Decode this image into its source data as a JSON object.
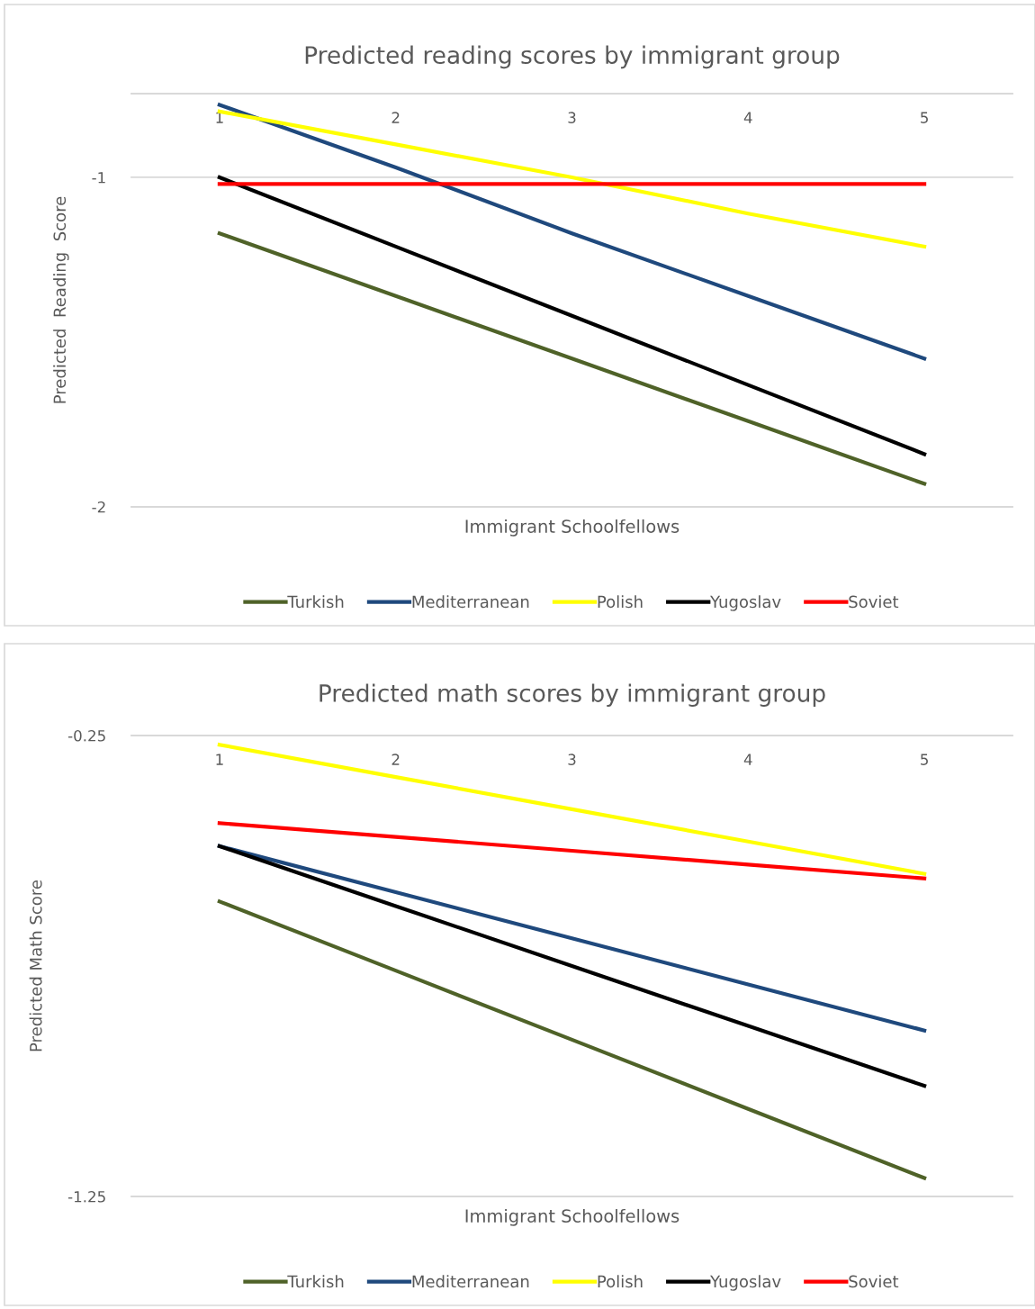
{
  "chart_data": [
    {
      "type": "line",
      "title": "Predicted reading scores by immigrant group",
      "xlabel": "Immigrant Schoolfellows",
      "ylabel": "Predicted  Reading  Score",
      "categories": [
        "1",
        "2",
        "3",
        "4",
        "5"
      ],
      "ylim": [
        -2,
        -0.746
      ],
      "yticks": [
        -2,
        -1
      ],
      "grid": "y",
      "legend": "bottom",
      "marker": "none",
      "line_style": "solid",
      "series": [
        {
          "name": "Turkish",
          "color": "#4f6228",
          "values": [
            -1.17,
            -1.36,
            -1.55,
            -1.74,
            -1.93
          ]
        },
        {
          "name": "Mediterranean",
          "color": "#1f497d",
          "values": [
            -0.78,
            -0.97,
            -1.17,
            -1.36,
            -1.55
          ]
        },
        {
          "name": "Polish",
          "color": "#ffff00",
          "values": [
            -0.8,
            -0.9,
            -1.0,
            -1.11,
            -1.21
          ]
        },
        {
          "name": "Yugoslav",
          "color": "#000000",
          "values": [
            -1.0,
            -1.21,
            -1.42,
            -1.63,
            -1.84
          ]
        },
        {
          "name": "Soviet",
          "color": "#ff0000",
          "values": [
            -1.02,
            -1.02,
            -1.02,
            -1.02,
            -1.02
          ]
        }
      ]
    },
    {
      "type": "line",
      "title": "Predicted math scores by immigrant group",
      "xlabel": "Immigrant Schoolfellows",
      "ylabel": "Predicted Math Score",
      "categories": [
        "1",
        "2",
        "3",
        "4",
        "5"
      ],
      "ylim": [
        -1.25,
        -0.25
      ],
      "yticks": [
        -1.25,
        -0.25
      ],
      "legend": "bottom",
      "marker": "none",
      "line_style": "solid",
      "series": [
        {
          "name": "Turkish",
          "color": "#4f6228",
          "values": [
            -0.61,
            -0.76,
            -0.91,
            -1.06,
            -1.21
          ]
        },
        {
          "name": "Mediterranean",
          "color": "#1f497d",
          "values": [
            -0.49,
            -0.59,
            -0.69,
            -0.79,
            -0.89
          ]
        },
        {
          "name": "Polish",
          "color": "#ffff00",
          "values": [
            -0.27,
            -0.34,
            -0.41,
            -0.48,
            -0.55
          ]
        },
        {
          "name": "Yugoslav",
          "color": "#000000",
          "values": [
            -0.49,
            -0.62,
            -0.75,
            -0.88,
            -1.01
          ]
        },
        {
          "name": "Soviet",
          "color": "#ff0000",
          "values": [
            -0.44,
            -0.47,
            -0.5,
            -0.53,
            -0.56
          ]
        }
      ]
    }
  ]
}
